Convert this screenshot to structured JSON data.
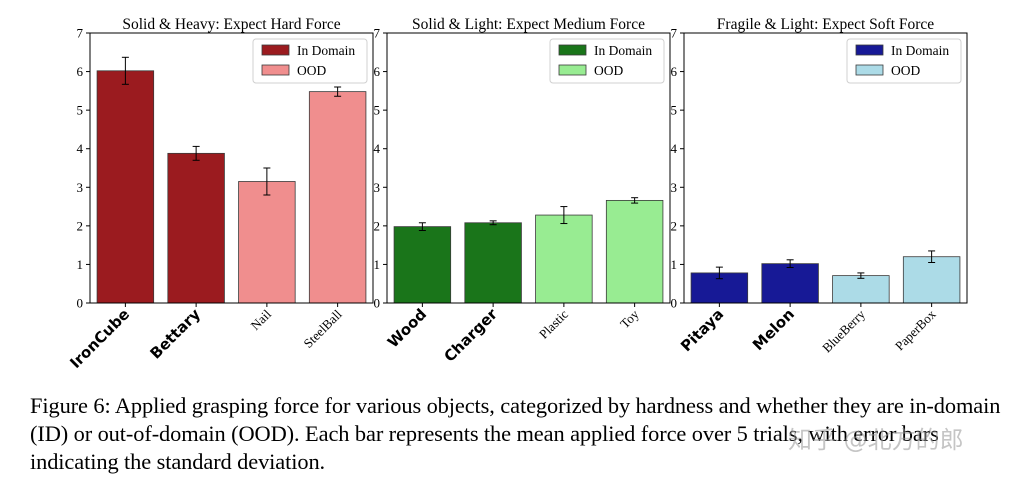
{
  "chart_data": [
    {
      "type": "bar",
      "title": "Solid & Heavy: Expect Hard Force",
      "categories": [
        "IronCube",
        "Bettary",
        "Nail",
        "SteelBall"
      ],
      "values": [
        6.02,
        3.88,
        3.15,
        5.48
      ],
      "errors": [
        0.35,
        0.18,
        0.35,
        0.12
      ],
      "groups": [
        "in",
        "in",
        "ood",
        "ood"
      ],
      "legend": [
        "In Domain",
        "OOD"
      ],
      "colors": {
        "in": "#9b1b1f",
        "ood": "#f08e8e"
      },
      "ylim": [
        0,
        7
      ],
      "yticks": [
        "0",
        "1",
        "2",
        "3",
        "4",
        "5",
        "6",
        "7"
      ],
      "xlabel": "",
      "ylabel": ""
    },
    {
      "type": "bar",
      "title": "Solid & Light: Expect Medium Force",
      "categories": [
        "Wood",
        "Charger",
        "Plastic",
        "Toy"
      ],
      "values": [
        1.98,
        2.08,
        2.28,
        2.66
      ],
      "errors": [
        0.1,
        0.05,
        0.22,
        0.07
      ],
      "groups": [
        "in",
        "in",
        "ood",
        "ood"
      ],
      "legend": [
        "In Domain",
        "OOD"
      ],
      "colors": {
        "in": "#1a751a",
        "ood": "#98ec92"
      },
      "ylim": [
        0,
        7
      ],
      "yticks": [
        "0",
        "1",
        "2",
        "3",
        "4",
        "5",
        "6",
        "7"
      ],
      "xlabel": "",
      "ylabel": ""
    },
    {
      "type": "bar",
      "title": "Fragile & Light: Expect Soft Force",
      "categories": [
        "Pitaya",
        "Melon",
        "BlueBerry",
        "PaperBox"
      ],
      "values": [
        0.78,
        1.02,
        0.71,
        1.2
      ],
      "errors": [
        0.15,
        0.1,
        0.07,
        0.15
      ],
      "groups": [
        "in",
        "in",
        "ood",
        "ood"
      ],
      "legend": [
        "In Domain",
        "OOD"
      ],
      "colors": {
        "in": "#171996",
        "ood": "#acdbe7"
      },
      "ylim": [
        0,
        7
      ],
      "yticks": [
        "0",
        "1",
        "2",
        "3",
        "4",
        "5",
        "6",
        "7"
      ],
      "xlabel": "",
      "ylabel": ""
    }
  ],
  "caption": "Figure 6: Applied grasping force for various objects, categorized by hardness and whether they are in-domain (ID) or out-of-domain (OOD). Each bar represents the mean applied force over 5 trials, with error bars indicating the standard deviation.",
  "watermark": "知乎 @北方的郎"
}
